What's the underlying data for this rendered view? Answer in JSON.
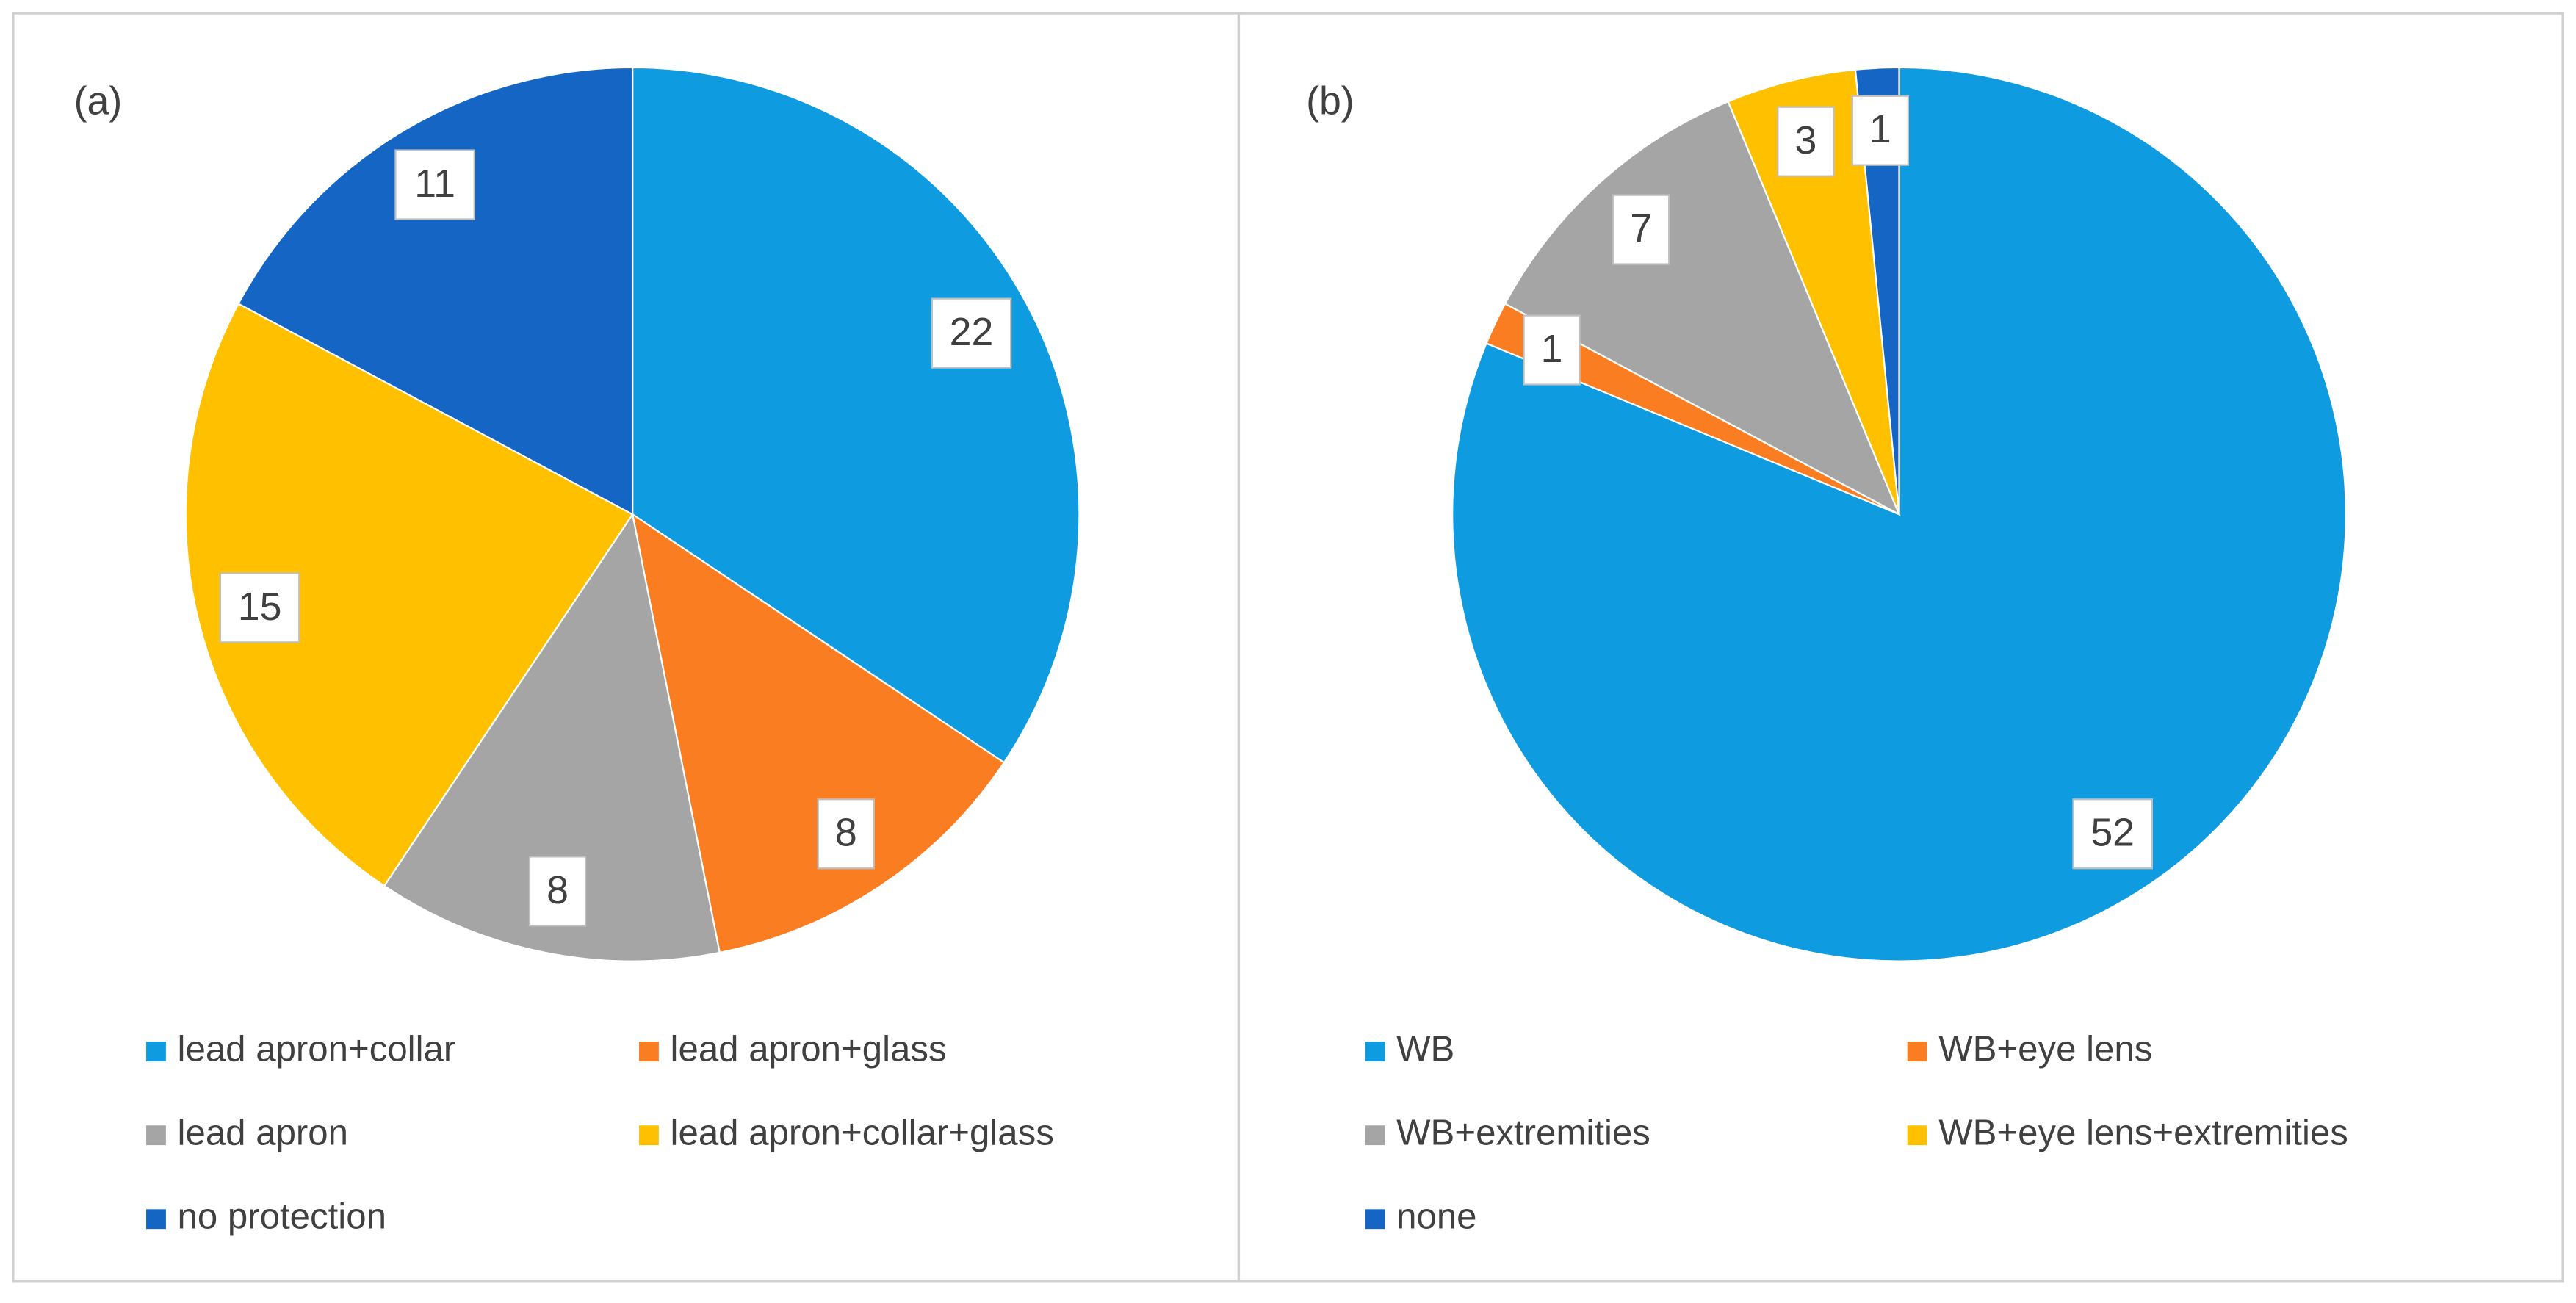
{
  "chart_data": [
    {
      "type": "pie",
      "label": "(a)",
      "categories": [
        "lead apron+collar",
        "lead apron+glass",
        "lead apron",
        "lead apron+collar+glass",
        "no protection"
      ],
      "values": [
        22,
        8,
        8,
        15,
        11
      ],
      "colors": [
        "#0f9be0",
        "#fb7d22",
        "#a5a5a5",
        "#ffc000",
        "#1566c4"
      ]
    },
    {
      "type": "pie",
      "label": "(b)",
      "categories": [
        "WB",
        "WB+eye lens",
        "WB+extremities",
        "WB+eye lens+extremities",
        "none"
      ],
      "values": [
        52,
        1,
        7,
        3,
        1
      ],
      "colors": [
        "#0f9be0",
        "#fb7d22",
        "#a5a5a5",
        "#ffc000",
        "#1566c4"
      ]
    }
  ]
}
